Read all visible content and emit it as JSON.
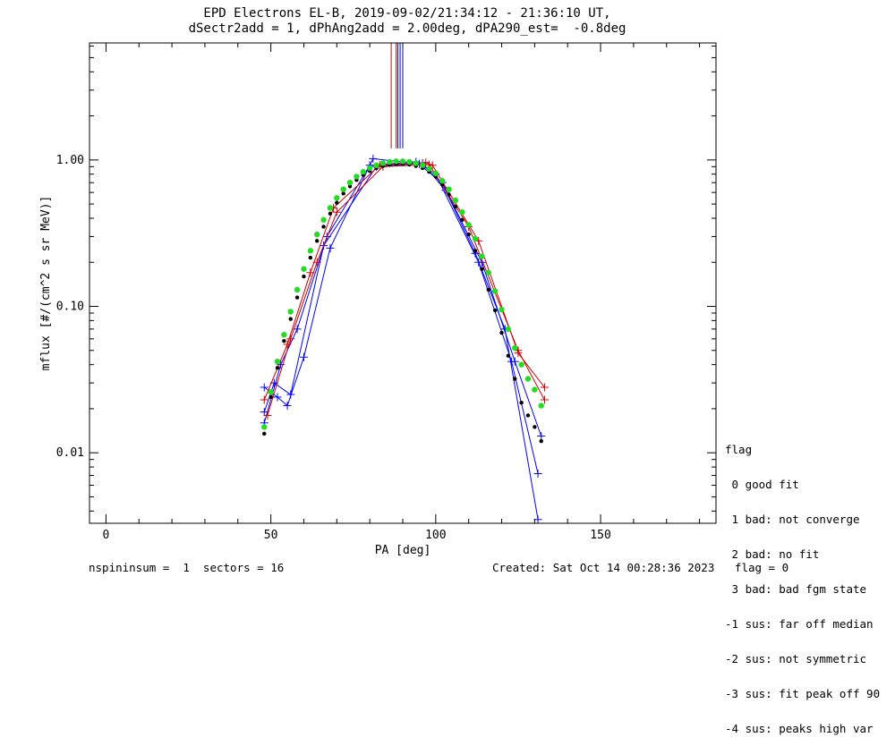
{
  "title": {
    "line1": "EPD Electrons EL-B, 2019-09-02/21:34:12 - 21:36:10 UT,",
    "line2": "dSectr2add = 1, dPhAng2add = 2.00deg, dPA290_est=  -0.8deg"
  },
  "footer": {
    "left": "nspininsum =  1  sectors = 16",
    "right": "Created: Sat Oct 14 00:28:36 2023   flag = 0"
  },
  "legend": {
    "title": "flag",
    "items": [
      " 0 good fit",
      " 1 bad: not converge",
      " 2 bad: no fit",
      " 3 bad: bad fgm state",
      "-1 sus: far off median",
      "-2 sus: not symmetric",
      "-3 sus: fit peak off 90",
      "-4 sus: peaks high var"
    ]
  },
  "chart_data": {
    "type": "line",
    "xlabel": "PA [deg]",
    "ylabel": "mflux [#/(cm^2 s sr MeV)]",
    "xlim": [
      -5,
      185
    ],
    "ylim": [
      0.0033,
      6.3
    ],
    "yscale": "log",
    "xticks": [
      0,
      50,
      100,
      150
    ],
    "yticks": [
      {
        "value": 0.01,
        "label": "0.01"
      },
      {
        "value": 0.1,
        "label": "0.10"
      },
      {
        "value": 1.0,
        "label": "1.00"
      }
    ],
    "vertical_markers": [
      {
        "x": 86.5,
        "color": "#a01818"
      },
      {
        "x": 88.0,
        "color": "#a01818"
      },
      {
        "x": 88.5,
        "color": "#0000cc"
      },
      {
        "x": 89.2,
        "color": "#0000cc"
      },
      {
        "x": 90.0,
        "color": "#0000cc"
      }
    ],
    "vertical_marker_ymin": 1.2,
    "series": [
      {
        "color": "#0000ff",
        "marker": "plus",
        "x": [
          48,
          52,
          55,
          60,
          68,
          81,
          95,
          100,
          113,
          123,
          131
        ],
        "y": [
          0.028,
          0.024,
          0.021,
          0.045,
          0.25,
          1.02,
          0.94,
          0.8,
          0.2,
          0.042,
          0.0072
        ]
      },
      {
        "color": "#0000ff",
        "marker": "plus",
        "x": [
          48,
          51,
          56,
          66,
          82,
          96,
          103,
          112,
          121,
          131
        ],
        "y": [
          0.019,
          0.03,
          0.025,
          0.26,
          0.9,
          0.95,
          0.62,
          0.23,
          0.07,
          0.0035
        ]
      },
      {
        "color": "#0000ff",
        "marker": "plus",
        "x": [
          48,
          53,
          58,
          67,
          80,
          94,
          102,
          114,
          124,
          132
        ],
        "y": [
          0.016,
          0.04,
          0.07,
          0.3,
          0.92,
          0.97,
          0.7,
          0.2,
          0.042,
          0.013
        ]
      },
      {
        "color": "#cc0000",
        "marker": "plus",
        "x": [
          48,
          55,
          62,
          69,
          83,
          97,
          99,
          113,
          125,
          133
        ],
        "y": [
          0.023,
          0.055,
          0.17,
          0.47,
          0.92,
          0.96,
          0.92,
          0.28,
          0.048,
          0.028
        ]
      },
      {
        "color": "#cc0000",
        "marker": "plus",
        "x": [
          49,
          56,
          64,
          70,
          84,
          98,
          110,
          125,
          133
        ],
        "y": [
          0.018,
          0.06,
          0.2,
          0.44,
          0.9,
          0.93,
          0.35,
          0.05,
          0.023
        ]
      },
      {
        "color": "#000000",
        "marker": "dot",
        "x": [
          48,
          50,
          52,
          54,
          56,
          58,
          60,
          62,
          64,
          66,
          68,
          70,
          72,
          74,
          76,
          78,
          80,
          82,
          84,
          86,
          88,
          90,
          92,
          94,
          96,
          98,
          100,
          102,
          104,
          106,
          108,
          110,
          112,
          114,
          116,
          118,
          120,
          122,
          124,
          126,
          128,
          130,
          132
        ],
        "y": [
          0.0135,
          0.024,
          0.038,
          0.058,
          0.082,
          0.115,
          0.16,
          0.215,
          0.28,
          0.35,
          0.43,
          0.51,
          0.59,
          0.66,
          0.73,
          0.79,
          0.84,
          0.88,
          0.91,
          0.93,
          0.94,
          0.94,
          0.93,
          0.91,
          0.88,
          0.83,
          0.77,
          0.68,
          0.58,
          0.48,
          0.39,
          0.31,
          0.24,
          0.18,
          0.13,
          0.094,
          0.066,
          0.046,
          0.032,
          0.022,
          0.018,
          0.015,
          0.012
        ]
      },
      {
        "color": "#22dd22",
        "marker": "bigdot",
        "x": [
          48,
          50,
          52,
          54,
          56,
          58,
          60,
          62,
          64,
          66,
          68,
          70,
          72,
          74,
          76,
          78,
          80,
          82,
          84,
          86,
          88,
          90,
          92,
          94,
          96,
          98,
          100,
          102,
          104,
          106,
          108,
          110,
          112,
          114,
          116,
          118,
          120,
          122,
          124,
          126,
          128,
          130,
          132
        ],
        "y": [
          0.015,
          0.026,
          0.042,
          0.064,
          0.092,
          0.13,
          0.18,
          0.24,
          0.31,
          0.39,
          0.47,
          0.55,
          0.63,
          0.7,
          0.77,
          0.83,
          0.88,
          0.92,
          0.95,
          0.97,
          0.98,
          0.98,
          0.97,
          0.95,
          0.92,
          0.87,
          0.81,
          0.72,
          0.63,
          0.53,
          0.44,
          0.36,
          0.29,
          0.22,
          0.17,
          0.127,
          0.095,
          0.07,
          0.052,
          0.04,
          0.032,
          0.027,
          0.021
        ]
      }
    ]
  }
}
